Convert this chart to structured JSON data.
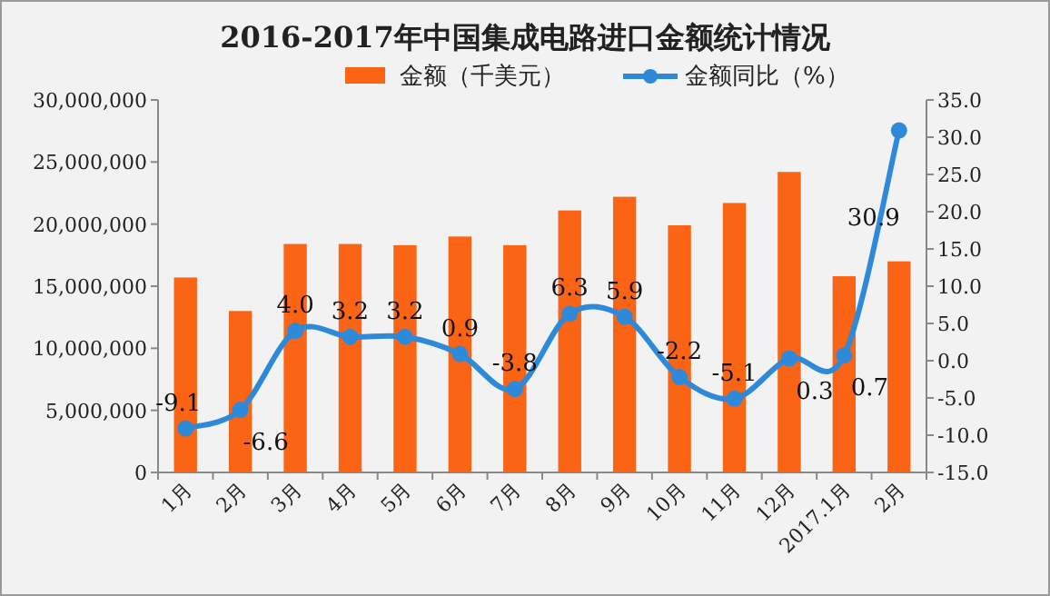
{
  "chart_data": {
    "type": "bar",
    "title": "2016-2017年中国集成电路进口金额统计情况",
    "categories": [
      "1月",
      "2月",
      "3月",
      "4月",
      "5月",
      "6月",
      "7月",
      "8月",
      "9月",
      "10月",
      "11月",
      "12月",
      "2017.1月",
      "2月"
    ],
    "series": [
      {
        "name": "金额（千美元）",
        "color": "#fa6414",
        "values": [
          15700000,
          13000000,
          18400000,
          18400000,
          18300000,
          19000000,
          18300000,
          21100000,
          22200000,
          19900000,
          21700000,
          24200000,
          15800000,
          17000000
        ]
      },
      {
        "name": "金额同比（%）",
        "type": "line",
        "axis": "y2",
        "color": "#2e8ad8",
        "marker": "circle",
        "values": [
          -9.1,
          -6.6,
          4.0,
          3.2,
          3.2,
          0.9,
          -3.8,
          6.3,
          5.9,
          -2.2,
          -5.1,
          0.3,
          0.7,
          30.9
        ],
        "value_labels": [
          "-9.1",
          "-6.6",
          "4.0",
          "3.2",
          "3.2",
          "0.9",
          "-3.8",
          "6.3",
          "5.9",
          "-2.2",
          "-5.1",
          "0.3",
          "0.7",
          "30.9"
        ]
      }
    ],
    "ylim": [
      0,
      30000000
    ],
    "yticks": [
      {
        "value": 0,
        "label": "0"
      },
      {
        "value": 5000000,
        "label": "5,000,000"
      },
      {
        "value": 10000000,
        "label": "10,000,000"
      },
      {
        "value": 15000000,
        "label": "15,000,000"
      },
      {
        "value": 20000000,
        "label": "20,000,000"
      },
      {
        "value": 25000000,
        "label": "25,000,000"
      },
      {
        "value": 30000000,
        "label": "30,000,000"
      }
    ],
    "y2lim": [
      -15,
      35
    ],
    "y2ticks": [
      {
        "value": -15,
        "label": "-15.0"
      },
      {
        "value": -10,
        "label": "-10.0"
      },
      {
        "value": -5,
        "label": "-5.0"
      },
      {
        "value": 0,
        "label": "0.0"
      },
      {
        "value": 5,
        "label": "5.0"
      },
      {
        "value": 10,
        "label": "10.0"
      },
      {
        "value": 15,
        "label": "15.0"
      },
      {
        "value": 20,
        "label": "20.0"
      },
      {
        "value": 25,
        "label": "25.0"
      },
      {
        "value": 30,
        "label": "30.0"
      },
      {
        "value": 35,
        "label": "35.0"
      }
    ],
    "legend": "top",
    "grid": false
  }
}
